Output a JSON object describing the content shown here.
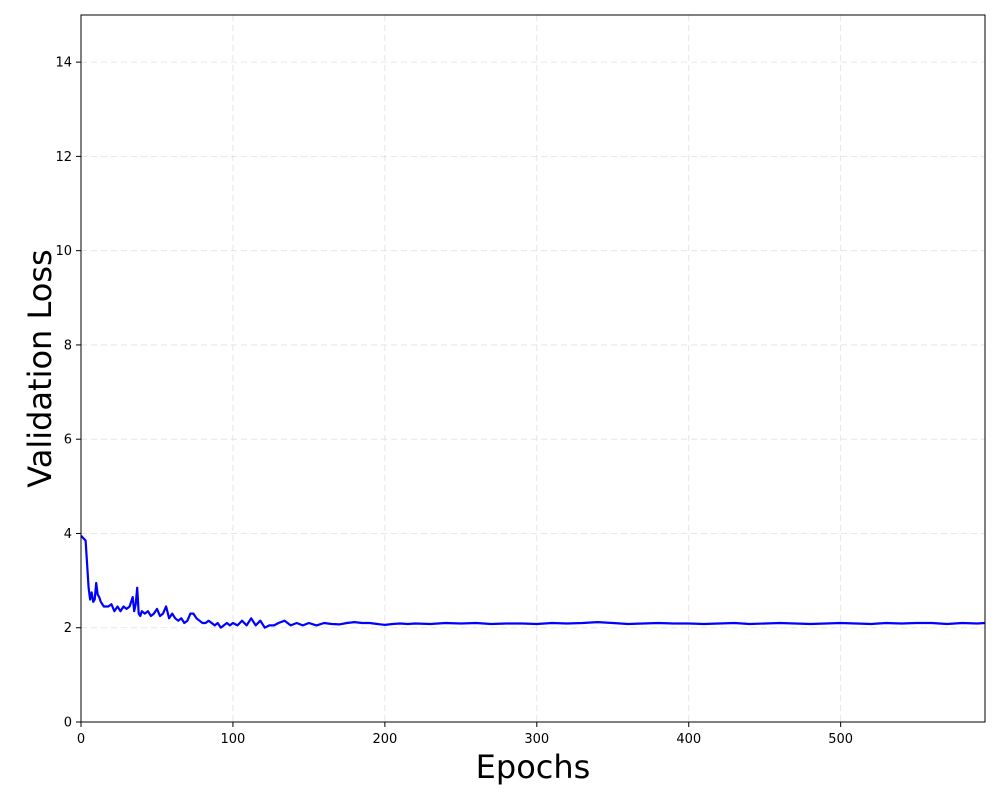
{
  "chart_data": {
    "type": "line",
    "title": "",
    "xlabel": "Epochs",
    "ylabel": "Validation Loss",
    "xlim": [
      0,
      595
    ],
    "ylim": [
      0,
      15
    ],
    "x_ticks": [
      0,
      100,
      200,
      300,
      400,
      500
    ],
    "y_ticks": [
      0,
      2,
      4,
      6,
      8,
      10,
      12,
      14
    ],
    "grid": true,
    "legend": "none",
    "series": [
      {
        "color": "#0000ff",
        "x": [
          0,
          3,
          5,
          6,
          7,
          8,
          9,
          10,
          11,
          12,
          13,
          15,
          18,
          20,
          22,
          24,
          26,
          28,
          30,
          32,
          34,
          35,
          36,
          37,
          38,
          39,
          40,
          42,
          44,
          46,
          48,
          50,
          52,
          54,
          56,
          58,
          60,
          62,
          64,
          66,
          68,
          70,
          72,
          74,
          76,
          78,
          80,
          82,
          84,
          86,
          88,
          90,
          92,
          94,
          96,
          98,
          100,
          103,
          106,
          109,
          112,
          115,
          118,
          121,
          124,
          127,
          130,
          134,
          138,
          142,
          146,
          150,
          155,
          160,
          165,
          170,
          175,
          180,
          185,
          190,
          195,
          200,
          205,
          210,
          215,
          220,
          230,
          240,
          250,
          260,
          270,
          280,
          290,
          300,
          310,
          320,
          330,
          340,
          350,
          360,
          370,
          380,
          390,
          400,
          410,
          420,
          430,
          440,
          450,
          460,
          470,
          480,
          490,
          500,
          510,
          520,
          530,
          540,
          550,
          560,
          570,
          580,
          590,
          595
        ],
        "y": [
          3.95,
          3.85,
          2.85,
          2.6,
          2.75,
          2.55,
          2.6,
          2.95,
          2.7,
          2.65,
          2.55,
          2.45,
          2.45,
          2.5,
          2.35,
          2.45,
          2.35,
          2.45,
          2.4,
          2.45,
          2.65,
          2.35,
          2.5,
          2.85,
          2.3,
          2.25,
          2.35,
          2.3,
          2.35,
          2.25,
          2.3,
          2.4,
          2.25,
          2.3,
          2.45,
          2.2,
          2.3,
          2.2,
          2.15,
          2.2,
          2.1,
          2.15,
          2.3,
          2.3,
          2.2,
          2.15,
          2.1,
          2.1,
          2.15,
          2.1,
          2.05,
          2.1,
          2.0,
          2.05,
          2.1,
          2.05,
          2.1,
          2.05,
          2.15,
          2.05,
          2.2,
          2.05,
          2.15,
          2.0,
          2.05,
          2.05,
          2.1,
          2.15,
          2.05,
          2.1,
          2.05,
          2.1,
          2.05,
          2.1,
          2.08,
          2.07,
          2.1,
          2.12,
          2.1,
          2.1,
          2.08,
          2.06,
          2.08,
          2.09,
          2.08,
          2.09,
          2.08,
          2.1,
          2.09,
          2.1,
          2.08,
          2.09,
          2.09,
          2.08,
          2.1,
          2.09,
          2.1,
          2.12,
          2.1,
          2.08,
          2.09,
          2.1,
          2.09,
          2.09,
          2.08,
          2.09,
          2.1,
          2.08,
          2.09,
          2.1,
          2.09,
          2.08,
          2.09,
          2.1,
          2.09,
          2.08,
          2.1,
          2.09,
          2.1,
          2.1,
          2.08,
          2.1,
          2.09,
          2.1
        ]
      }
    ]
  }
}
